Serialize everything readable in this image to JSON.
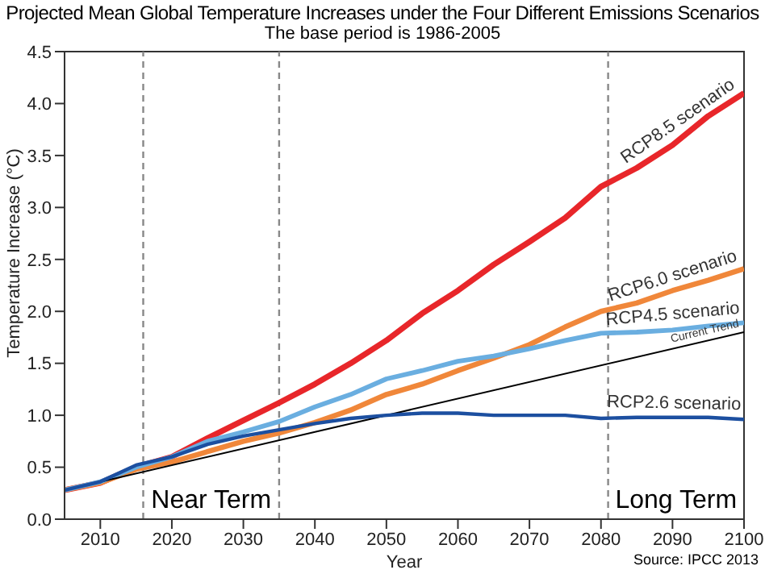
{
  "chart_data": {
    "type": "line",
    "title": "Projected Mean Global Temperature Increases under the Four Different Emissions Scenarios",
    "subtitle": "The base period is 1986-2005",
    "xlabel": "Year",
    "ylabel": "Temperature Increase (°C)",
    "x": [
      2005,
      2010,
      2015,
      2020,
      2025,
      2030,
      2035,
      2040,
      2045,
      2050,
      2055,
      2060,
      2065,
      2070,
      2075,
      2080,
      2085,
      2090,
      2095,
      2100
    ],
    "series": [
      {
        "name": "RCP8.5 scenario",
        "color": "#e8262a",
        "values": [
          0.28,
          0.35,
          0.5,
          0.6,
          0.78,
          0.95,
          1.12,
          1.3,
          1.5,
          1.72,
          1.98,
          2.2,
          2.45,
          2.67,
          2.9,
          3.2,
          3.38,
          3.6,
          3.88,
          4.1
        ]
      },
      {
        "name": "RCP6.0 scenario",
        "color": "#f0873a",
        "values": [
          0.28,
          0.35,
          0.48,
          0.55,
          0.65,
          0.75,
          0.83,
          0.93,
          1.05,
          1.2,
          1.3,
          1.43,
          1.55,
          1.68,
          1.85,
          2.0,
          2.08,
          2.2,
          2.3,
          2.41
        ]
      },
      {
        "name": "RCP4.5 scenario",
        "color": "#6aaee0",
        "values": [
          0.28,
          0.36,
          0.5,
          0.6,
          0.75,
          0.84,
          0.94,
          1.08,
          1.2,
          1.35,
          1.43,
          1.52,
          1.57,
          1.64,
          1.72,
          1.79,
          1.8,
          1.82,
          1.86,
          1.89
        ]
      },
      {
        "name": "Current Trend",
        "color": "#000000",
        "x": [
          2005,
          2100
        ],
        "values": [
          0.28,
          1.8
        ]
      },
      {
        "name": "RCP2.6 scenario",
        "color": "#1c4fa0",
        "values": [
          0.28,
          0.36,
          0.52,
          0.6,
          0.72,
          0.8,
          0.86,
          0.92,
          0.97,
          1.0,
          1.02,
          1.02,
          1.0,
          1.0,
          1.0,
          0.97,
          0.98,
          0.98,
          0.98,
          0.96
        ]
      }
    ],
    "xlim": [
      2005,
      2100
    ],
    "xticks": [
      2010,
      2020,
      2030,
      2040,
      2050,
      2060,
      2070,
      2080,
      2090,
      2100
    ],
    "ylim": [
      0,
      4.5
    ],
    "yticks": [
      {
        "value": 0,
        "label": "0.0"
      },
      {
        "value": 0.5,
        "label": "0.5"
      },
      {
        "value": 1,
        "label": "1.0"
      },
      {
        "value": 1.5,
        "label": "1.5"
      },
      {
        "value": 2,
        "label": "2.0"
      },
      {
        "value": 2.5,
        "label": "2.5"
      },
      {
        "value": 3,
        "label": "3.0"
      },
      {
        "value": 3.5,
        "label": "3.5"
      },
      {
        "value": 4,
        "label": "4.0"
      },
      {
        "value": 4.5,
        "label": "4.5"
      }
    ],
    "ref_lines": [
      {
        "axis": "x",
        "value": 2016,
        "color": "#888888",
        "line_style": "dashed"
      },
      {
        "axis": "x",
        "value": 2035,
        "color": "#888888",
        "line_style": "dashed"
      },
      {
        "axis": "x",
        "value": 2081,
        "color": "#888888",
        "line_style": "dashed"
      }
    ],
    "annotations": [
      "Near Term",
      "Long Term",
      "Source: IPCC 2013"
    ],
    "grid": false,
    "legend": false,
    "marker": "none",
    "line_style": "solid"
  }
}
